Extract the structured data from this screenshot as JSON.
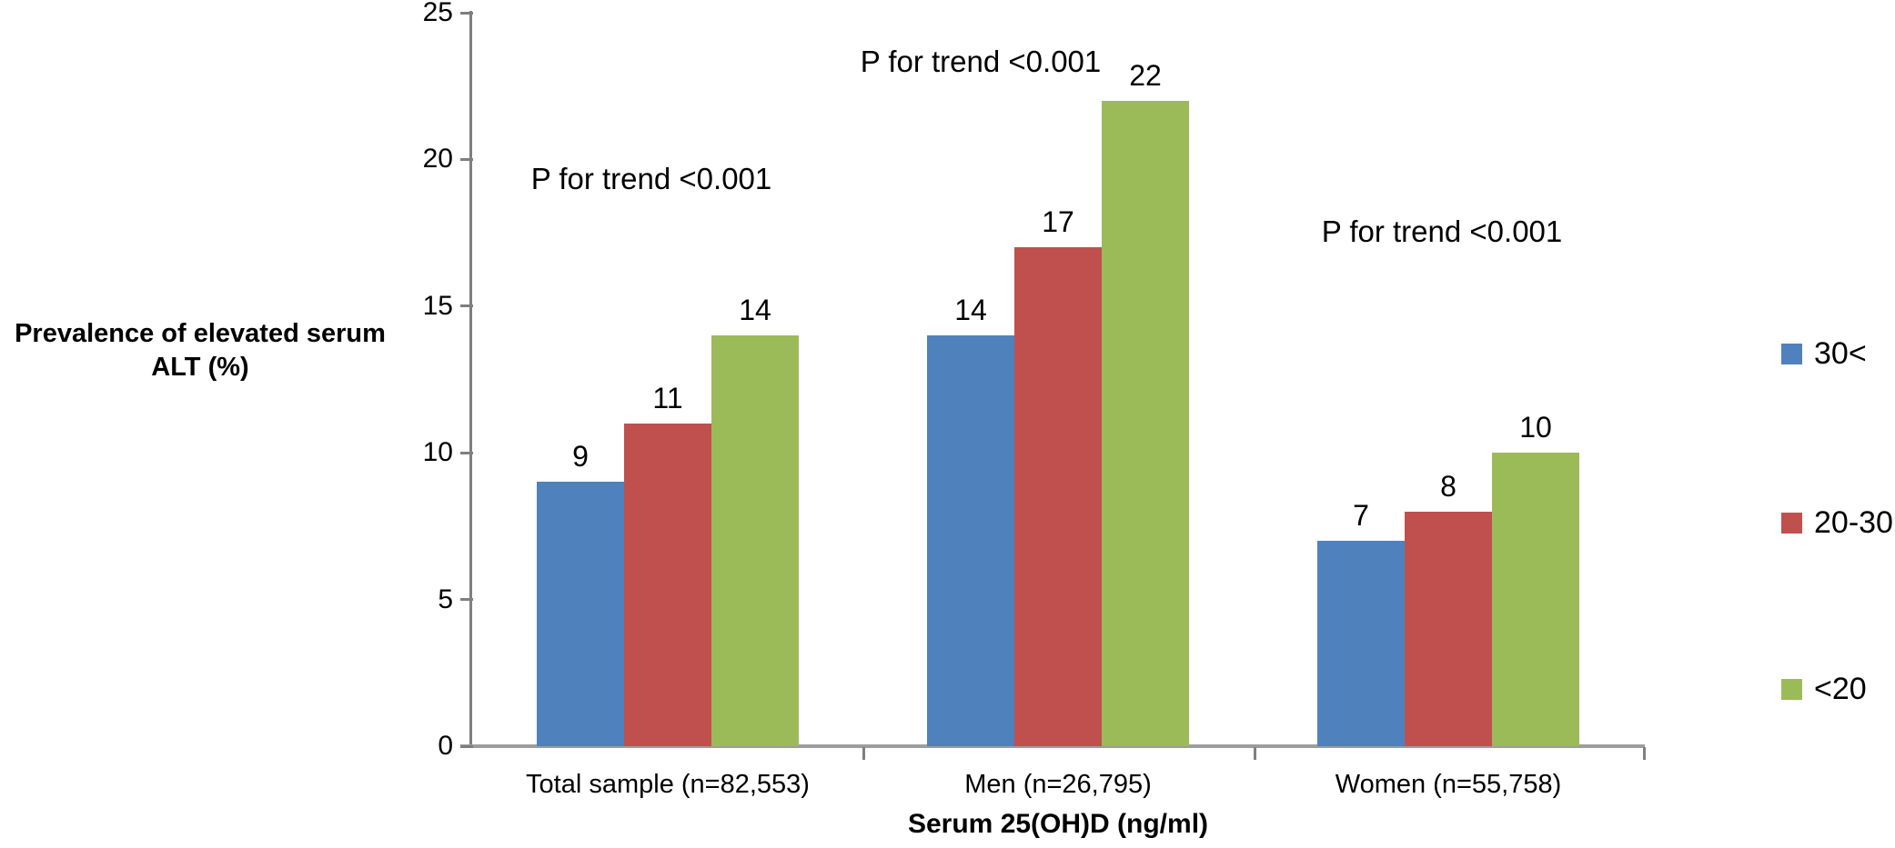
{
  "figure": {
    "background": "#ffffff",
    "text_color": "#000000",
    "axis_line_color": "#7f7f7f"
  },
  "chart_data": {
    "type": "bar",
    "title": "",
    "ylabel": "Prevalence of elevated serum ALT (%)",
    "ylabel_lines": [
      "Prevalence of elevated serum",
      "ALT (%)"
    ],
    "xlabel": "Serum 25(OH)D (ng/ml)",
    "categories": [
      "Total sample (n=82,553)",
      "Men (n=26,795)",
      "Women (n=55,758)"
    ],
    "series": [
      {
        "name": "30<",
        "color": "#4F81BD",
        "values": [
          9,
          14,
          7
        ]
      },
      {
        "name": "20-30",
        "color": "#C0504D",
        "values": [
          11,
          17,
          8
        ]
      },
      {
        "name": "<20",
        "color": "#9BBB59",
        "values": [
          14,
          22,
          10
        ]
      }
    ],
    "annotations": [
      {
        "text": "P for trend <0.001",
        "category": "Total sample (n=82,553)"
      },
      {
        "text": "P for trend <0.001",
        "category": "Men (n=26,795)"
      },
      {
        "text": "P for trend <0.001",
        "category": "Women (n=55,758)"
      }
    ],
    "ylim": [
      0,
      25
    ],
    "yticks": [
      0,
      5,
      10,
      15,
      20,
      25
    ],
    "grid": false,
    "data_labels": true,
    "legend_position": "right"
  },
  "legend": {
    "items": [
      {
        "label": "30<",
        "color": "#4F81BD"
      },
      {
        "label": "20-30",
        "color": "#C0504D"
      },
      {
        "label": "<20",
        "color": "#9BBB59"
      }
    ]
  }
}
